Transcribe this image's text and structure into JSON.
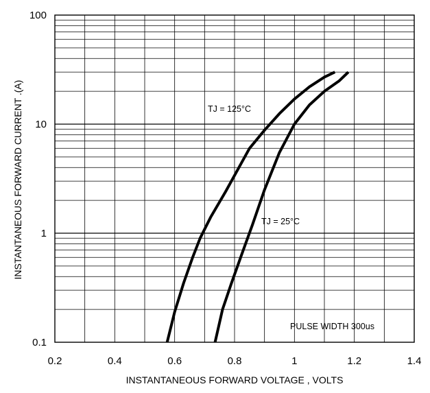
{
  "chart_data": {
    "type": "line",
    "title": "",
    "xlabel": "INSTANTANEOUS FORWARD VOLTAGE , VOLTS",
    "ylabel": "INSTANTANEOUS  FORWARD CURRENT .(A)",
    "x_scale": "linear",
    "y_scale": "log",
    "xlim": [
      0.2,
      1.4
    ],
    "ylim": [
      0.1,
      100
    ],
    "x_ticks": [
      0.2,
      0.4,
      0.6,
      0.8,
      1,
      1.2,
      1.4
    ],
    "x_tick_labels": [
      "0.2",
      "0.4",
      "0.6",
      "0.8",
      "1",
      "1.2",
      "1.4"
    ],
    "y_ticks": [
      0.1,
      1,
      10,
      100
    ],
    "y_tick_labels": [
      "0.1",
      "1",
      "10",
      "100"
    ],
    "grid": true,
    "legend": "none",
    "series": [
      {
        "name": "TJ = 125°C",
        "x": [
          0.575,
          0.6,
          0.63,
          0.66,
          0.685,
          0.72,
          0.77,
          0.81,
          0.85,
          0.9,
          0.95,
          1.0,
          1.05,
          1.1,
          1.135
        ],
        "y": [
          0.1,
          0.19,
          0.35,
          0.6,
          0.9,
          1.4,
          2.4,
          3.8,
          6.0,
          8.8,
          12.5,
          17.0,
          22.0,
          27.0,
          30.0
        ],
        "color": "#000000"
      },
      {
        "name": "TJ = 25°C",
        "x": [
          0.735,
          0.76,
          0.79,
          0.825,
          0.86,
          0.9,
          0.95,
          1.0,
          1.05,
          1.1,
          1.15,
          1.18
        ],
        "y": [
          0.1,
          0.2,
          0.35,
          0.65,
          1.2,
          2.5,
          5.5,
          10.0,
          15.0,
          20.0,
          25.0,
          30.0
        ],
        "color": "#000000"
      }
    ],
    "annotations": [
      {
        "text": "TJ = 125°C"
      },
      {
        "text": "TJ = 25°C"
      },
      {
        "text": "PULSE WIDTH 300us"
      }
    ]
  }
}
